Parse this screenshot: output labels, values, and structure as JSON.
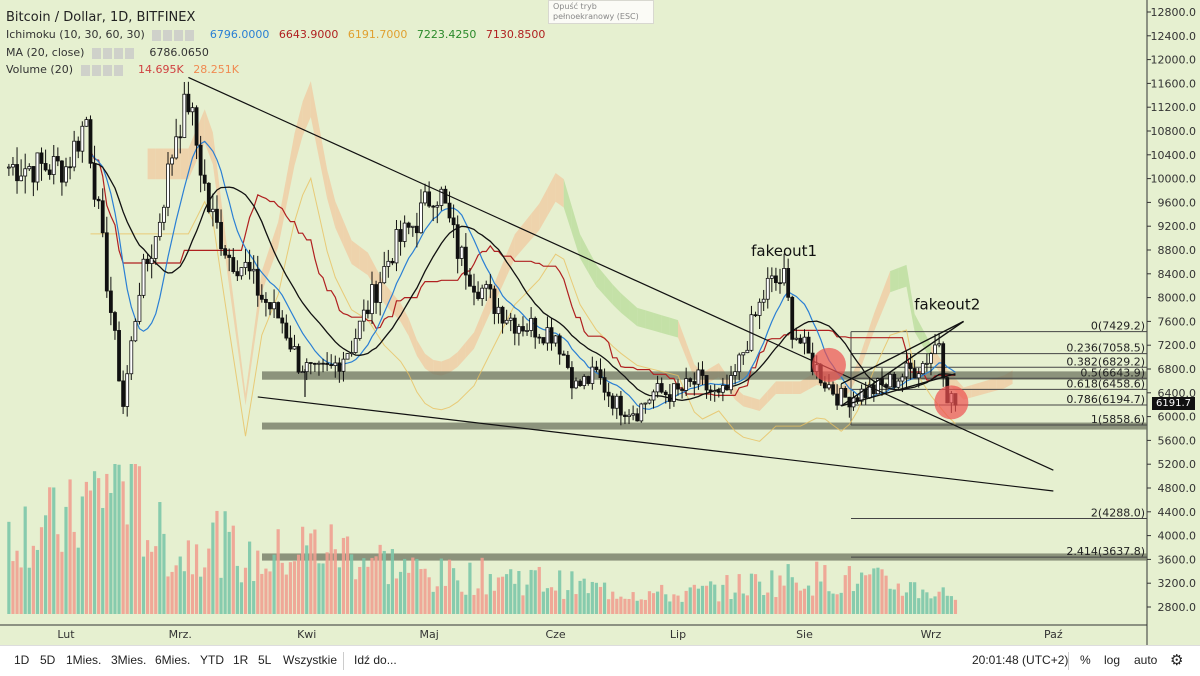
{
  "header": {
    "title": "Bitcoin / Dollar, 1D, BITFINEX",
    "ichimoku_label": "Ichimoku (10, 30, 60, 30)",
    "ichimoku_values": [
      "6796.0000",
      "6643.9000",
      "6191.7000",
      "7223.4250",
      "7130.8500"
    ],
    "ichimoku_colors": [
      "#2a7fd4",
      "#b02020",
      "#e0a030",
      "#2a8a2a",
      "#b02020"
    ],
    "ma_label": "MA (20, close)",
    "ma_value": "6786.0650",
    "volume_label": "Volume (20)",
    "volume_values": [
      "14.695K",
      "28.251K"
    ],
    "volume_colors": [
      "#d04040",
      "#f08a50"
    ]
  },
  "fullscreen_tip": "Opuść tryb pełnoekranowy (ESC)",
  "current_price_label": "6191.7",
  "bottom_bar": {
    "ranges": [
      "1D",
      "5D",
      "1Mies.",
      "3Mies.",
      "6Mies.",
      "YTD",
      "1R",
      "5L",
      "Wszystkie"
    ],
    "goto": "Idź do...",
    "clock": "20:01:48 (UTC+2)",
    "percent": "%",
    "log": "log",
    "auto": "auto"
  },
  "colors": {
    "background": "#e6f0d0",
    "cloud_bear": "#f0c9a0",
    "cloud_bull": "#b8dc9a",
    "up_candle": "#111111",
    "volume_up": "#7cc7a8",
    "volume_down": "#f0a090",
    "tenkan": "#2a7fd4",
    "kijun": "#b02020",
    "chikou": "#e8c060",
    "ma": "#111111",
    "zone": "#6e7460",
    "fakeout_marker": "#ee5050"
  },
  "chart_data": {
    "type": "candlestick",
    "title": "Bitcoin / Dollar, 1D, BITFINEX",
    "y_range": [
      2400,
      12900
    ],
    "y_ticks": [
      12800,
      12400,
      12000,
      11600,
      11200,
      10800,
      10400,
      10000,
      9600,
      9200,
      8800,
      8400,
      8000,
      7600,
      7200,
      6800,
      6400,
      6000,
      5600,
      5200,
      4800,
      4400,
      4000,
      3600,
      3200,
      2800
    ],
    "x_ticks": [
      {
        "label": "Lut",
        "day": 0
      },
      {
        "label": "Mrz.",
        "day": 28
      },
      {
        "label": "Kwi",
        "day": 59
      },
      {
        "label": "Maj",
        "day": 89
      },
      {
        "label": "Cze",
        "day": 120
      },
      {
        "label": "Lip",
        "day": 150
      },
      {
        "label": "Sie",
        "day": 181
      },
      {
        "label": "Wrz",
        "day": 212
      },
      {
        "label": "Paź",
        "day": 242
      }
    ],
    "price_anchors": [
      [
        0,
        10200
      ],
      [
        5,
        11000
      ],
      [
        10,
        8300
      ],
      [
        14,
        6200
      ],
      [
        18,
        8200
      ],
      [
        22,
        9000
      ],
      [
        27,
        10800
      ],
      [
        30,
        11300
      ],
      [
        35,
        9500
      ],
      [
        40,
        8700
      ],
      [
        44,
        8500
      ],
      [
        48,
        8000
      ],
      [
        53,
        7600
      ],
      [
        57,
        6900
      ],
      [
        61,
        6700
      ],
      [
        65,
        6800
      ],
      [
        70,
        7200
      ],
      [
        75,
        8000
      ],
      [
        80,
        8800
      ],
      [
        86,
        9300
      ],
      [
        90,
        9800
      ],
      [
        92,
        9700
      ],
      [
        96,
        8800
      ],
      [
        100,
        8300
      ],
      [
        105,
        7900
      ],
      [
        110,
        7600
      ],
      [
        115,
        7500
      ],
      [
        120,
        7400
      ],
      [
        125,
        6500
      ],
      [
        130,
        6700
      ],
      [
        135,
        6200
      ],
      [
        140,
        6100
      ],
      [
        144,
        6400
      ],
      [
        150,
        6400
      ],
      [
        155,
        6600
      ],
      [
        160,
        6300
      ],
      [
        163,
        6500
      ],
      [
        168,
        7500
      ],
      [
        172,
        8200
      ],
      [
        176,
        8300
      ],
      [
        178,
        7500
      ],
      [
        182,
        7000
      ],
      [
        186,
        6600
      ],
      [
        190,
        6300
      ],
      [
        195,
        6400
      ],
      [
        200,
        6500
      ],
      [
        205,
        6700
      ],
      [
        210,
        6900
      ],
      [
        214,
        7300
      ],
      [
        216,
        6400
      ],
      [
        218,
        6192
      ]
    ],
    "volume_anchors": [
      [
        0,
        14
      ],
      [
        10,
        21
      ],
      [
        14,
        24
      ],
      [
        20,
        14
      ],
      [
        28,
        9
      ],
      [
        35,
        13
      ],
      [
        45,
        8
      ],
      [
        60,
        11
      ],
      [
        70,
        10
      ],
      [
        90,
        6
      ],
      [
        110,
        6
      ],
      [
        130,
        4
      ],
      [
        150,
        3
      ],
      [
        170,
        5
      ],
      [
        180,
        6
      ],
      [
        200,
        5
      ],
      [
        218,
        3
      ]
    ],
    "volume_scale_max": 24,
    "current_price": 6191.7,
    "fibonacci_levels": [
      {
        "label": "0(7429.2)",
        "price": 7429.2
      },
      {
        "label": "0.236(7058.5)",
        "price": 7058.5
      },
      {
        "label": "0.382(6829.2)",
        "price": 6829.2
      },
      {
        "label": "0.5(6643.9)",
        "price": 6643.9
      },
      {
        "label": "0.618(6458.6)",
        "price": 6458.6
      },
      {
        "label": "0.786(6194.7)",
        "price": 6194.7
      },
      {
        "label": "1(5858.6)",
        "price": 5858.6
      },
      {
        "label": "2(4288.0)",
        "price": 4288.0
      },
      {
        "label": "2.414(3637.8)",
        "price": 3637.8
      }
    ],
    "horizontal_zones": [
      {
        "from_day": 0,
        "price_top": 6760,
        "price_bottom": 6620
      },
      {
        "from_day": 0,
        "price_top": 5900,
        "price_bottom": 5800
      },
      {
        "from_day": 0,
        "price_top": 3700,
        "price_bottom": 3580
      }
    ],
    "trendlines": [
      {
        "from": [
          30,
          11700
        ],
        "to": [
          242,
          5100
        ]
      },
      {
        "from": [
          47,
          6330
        ],
        "to": [
          242,
          4750
        ]
      }
    ],
    "wedge": {
      "lower": [
        [
          190,
          6180
        ],
        [
          218,
          6720
        ]
      ],
      "upper": [
        [
          190,
          6550
        ],
        [
          220,
          7600
        ]
      ]
    },
    "annotations": [
      {
        "text": "fakeout1",
        "day": 176,
        "price": 8700
      },
      {
        "text": "fakeout2",
        "day": 216,
        "price": 7800
      }
    ],
    "fakeout_markers": [
      {
        "day": 187,
        "price": 6870
      },
      {
        "day": 217,
        "price": 6240
      }
    ]
  }
}
